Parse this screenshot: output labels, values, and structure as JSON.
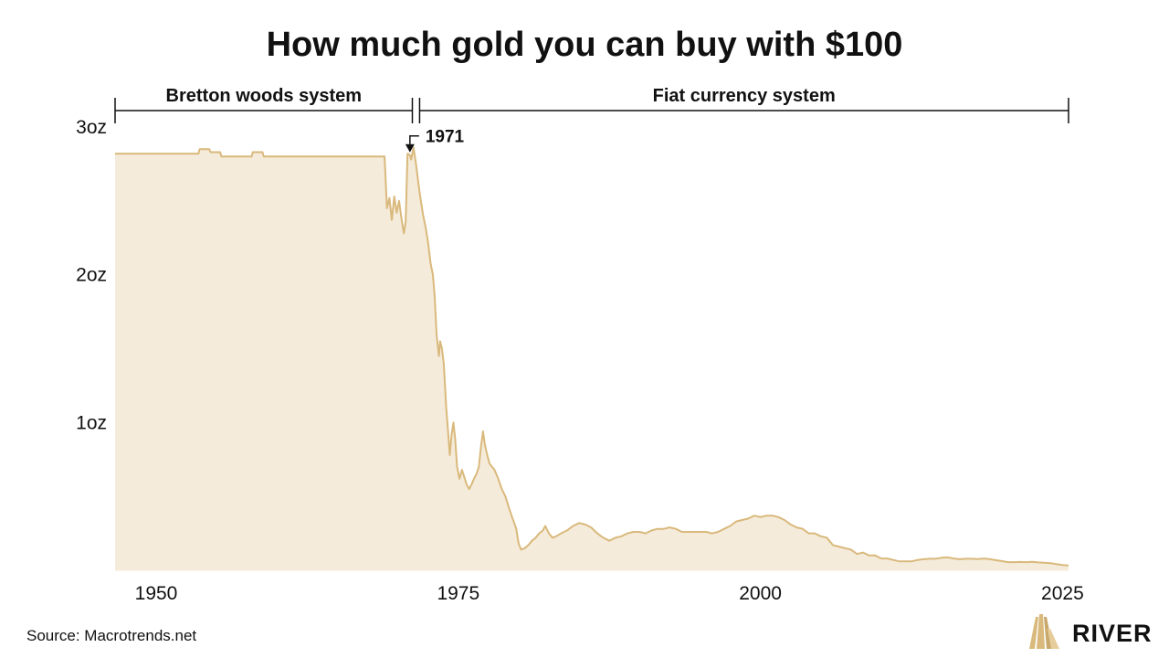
{
  "chart_data": {
    "type": "area",
    "title": "How much gold you can buy with $100",
    "xlabel": "",
    "ylabel": "",
    "x_ticks": [
      1950,
      1975,
      2000,
      2025
    ],
    "y_ticks": [
      {
        "value": 1,
        "label": "1oz"
      },
      {
        "value": 2,
        "label": "2oz"
      },
      {
        "value": 3,
        "label": "3oz"
      }
    ],
    "xlim": [
      1946.6,
      2025.5
    ],
    "ylim": [
      0,
      3
    ],
    "grid": false,
    "colors": {
      "fill": "#f5ebda",
      "line": "#d9b97c"
    },
    "eras": [
      {
        "label": "Bretton woods system",
        "start": 1946.6,
        "end": 1971.2
      },
      {
        "label": "Fiat currency system",
        "start": 1971.8,
        "end": 2025.5
      }
    ],
    "annotation": {
      "label": "1971",
      "x": 1971.0,
      "y": 2.81
    },
    "series": [
      {
        "values": [
          [
            1946.6,
            2.82
          ],
          [
            1953.5,
            2.82
          ],
          [
            1953.6,
            2.85
          ],
          [
            1954.4,
            2.85
          ],
          [
            1954.5,
            2.83
          ],
          [
            1955.3,
            2.83
          ],
          [
            1955.4,
            2.8
          ],
          [
            1957.9,
            2.8
          ],
          [
            1958.0,
            2.83
          ],
          [
            1958.8,
            2.83
          ],
          [
            1958.9,
            2.8
          ],
          [
            1968.9,
            2.8
          ],
          [
            1969.1,
            2.45
          ],
          [
            1969.3,
            2.52
          ],
          [
            1969.5,
            2.37
          ],
          [
            1969.7,
            2.53
          ],
          [
            1969.9,
            2.42
          ],
          [
            1970.1,
            2.5
          ],
          [
            1970.3,
            2.38
          ],
          [
            1970.5,
            2.28
          ],
          [
            1970.65,
            2.36
          ],
          [
            1970.8,
            2.82
          ],
          [
            1971.0,
            2.81
          ],
          [
            1971.1,
            2.78
          ],
          [
            1971.3,
            2.86
          ],
          [
            1971.5,
            2.75
          ],
          [
            1971.7,
            2.62
          ],
          [
            1971.9,
            2.5
          ],
          [
            1972.1,
            2.4
          ],
          [
            1972.3,
            2.32
          ],
          [
            1972.5,
            2.22
          ],
          [
            1972.7,
            2.08
          ],
          [
            1972.9,
            2.0
          ],
          [
            1973.05,
            1.85
          ],
          [
            1973.2,
            1.6
          ],
          [
            1973.4,
            1.45
          ],
          [
            1973.5,
            1.55
          ],
          [
            1973.65,
            1.5
          ],
          [
            1973.8,
            1.4
          ],
          [
            1974.0,
            1.1
          ],
          [
            1974.15,
            0.95
          ],
          [
            1974.3,
            0.78
          ],
          [
            1974.45,
            0.92
          ],
          [
            1974.6,
            1.0
          ],
          [
            1974.75,
            0.88
          ],
          [
            1974.9,
            0.7
          ],
          [
            1975.1,
            0.62
          ],
          [
            1975.3,
            0.68
          ],
          [
            1975.5,
            0.63
          ],
          [
            1975.7,
            0.58
          ],
          [
            1975.9,
            0.55
          ],
          [
            1976.1,
            0.58
          ],
          [
            1976.3,
            0.62
          ],
          [
            1976.5,
            0.65
          ],
          [
            1976.7,
            0.7
          ],
          [
            1976.9,
            0.85
          ],
          [
            1977.05,
            0.94
          ],
          [
            1977.2,
            0.85
          ],
          [
            1977.4,
            0.78
          ],
          [
            1977.6,
            0.72
          ],
          [
            1977.8,
            0.7
          ],
          [
            1978.0,
            0.68
          ],
          [
            1978.3,
            0.62
          ],
          [
            1978.6,
            0.55
          ],
          [
            1978.9,
            0.5
          ],
          [
            1979.2,
            0.42
          ],
          [
            1979.5,
            0.35
          ],
          [
            1979.8,
            0.28
          ],
          [
            1980.0,
            0.18
          ],
          [
            1980.2,
            0.14
          ],
          [
            1980.5,
            0.15
          ],
          [
            1980.8,
            0.17
          ],
          [
            1981.1,
            0.2
          ],
          [
            1981.4,
            0.22
          ],
          [
            1981.7,
            0.25
          ],
          [
            1982.0,
            0.27
          ],
          [
            1982.2,
            0.3
          ],
          [
            1982.5,
            0.25
          ],
          [
            1982.8,
            0.22
          ],
          [
            1983.1,
            0.23
          ],
          [
            1983.5,
            0.25
          ],
          [
            1984.0,
            0.27
          ],
          [
            1984.5,
            0.3
          ],
          [
            1985.0,
            0.32
          ],
          [
            1985.5,
            0.31
          ],
          [
            1986.0,
            0.29
          ],
          [
            1986.5,
            0.25
          ],
          [
            1987.0,
            0.22
          ],
          [
            1987.5,
            0.2
          ],
          [
            1988.0,
            0.22
          ],
          [
            1988.5,
            0.23
          ],
          [
            1989.0,
            0.25
          ],
          [
            1989.5,
            0.26
          ],
          [
            1990.0,
            0.26
          ],
          [
            1990.5,
            0.25
          ],
          [
            1991.0,
            0.27
          ],
          [
            1991.5,
            0.28
          ],
          [
            1992.0,
            0.28
          ],
          [
            1992.5,
            0.29
          ],
          [
            1993.0,
            0.28
          ],
          [
            1993.5,
            0.26
          ],
          [
            1994.0,
            0.26
          ],
          [
            1994.5,
            0.26
          ],
          [
            1995.0,
            0.26
          ],
          [
            1995.5,
            0.26
          ],
          [
            1996.0,
            0.25
          ],
          [
            1996.5,
            0.26
          ],
          [
            1997.0,
            0.28
          ],
          [
            1997.5,
            0.3
          ],
          [
            1998.0,
            0.33
          ],
          [
            1998.5,
            0.34
          ],
          [
            1999.0,
            0.35
          ],
          [
            1999.5,
            0.37
          ],
          [
            2000.0,
            0.36
          ],
          [
            2000.5,
            0.37
          ],
          [
            2001.0,
            0.37
          ],
          [
            2001.5,
            0.36
          ],
          [
            2002.0,
            0.34
          ],
          [
            2002.5,
            0.31
          ],
          [
            2003.0,
            0.29
          ],
          [
            2003.5,
            0.28
          ],
          [
            2004.0,
            0.25
          ],
          [
            2004.5,
            0.25
          ],
          [
            2005.0,
            0.23
          ],
          [
            2005.5,
            0.22
          ],
          [
            2006.0,
            0.17
          ],
          [
            2006.5,
            0.16
          ],
          [
            2007.0,
            0.15
          ],
          [
            2007.5,
            0.14
          ],
          [
            2008.0,
            0.11
          ],
          [
            2008.5,
            0.12
          ],
          [
            2009.0,
            0.1
          ],
          [
            2009.5,
            0.1
          ],
          [
            2010.0,
            0.08
          ],
          [
            2010.5,
            0.08
          ],
          [
            2011.0,
            0.07
          ],
          [
            2011.5,
            0.06
          ],
          [
            2012.0,
            0.06
          ],
          [
            2012.5,
            0.06
          ],
          [
            2013.0,
            0.07
          ],
          [
            2013.5,
            0.075
          ],
          [
            2014.0,
            0.078
          ],
          [
            2014.5,
            0.078
          ],
          [
            2015.0,
            0.085
          ],
          [
            2015.5,
            0.087
          ],
          [
            2016.0,
            0.08
          ],
          [
            2016.5,
            0.075
          ],
          [
            2017.0,
            0.078
          ],
          [
            2017.5,
            0.078
          ],
          [
            2018.0,
            0.076
          ],
          [
            2018.5,
            0.08
          ],
          [
            2019.0,
            0.075
          ],
          [
            2019.5,
            0.068
          ],
          [
            2020.0,
            0.062
          ],
          [
            2020.5,
            0.055
          ],
          [
            2021.0,
            0.055
          ],
          [
            2021.5,
            0.056
          ],
          [
            2022.0,
            0.055
          ],
          [
            2022.5,
            0.057
          ],
          [
            2023.0,
            0.053
          ],
          [
            2023.5,
            0.051
          ],
          [
            2024.0,
            0.048
          ],
          [
            2024.5,
            0.042
          ],
          [
            2025.0,
            0.036
          ],
          [
            2025.5,
            0.032
          ]
        ]
      }
    ]
  },
  "footer": {
    "source": "Source: Macrotrends.net",
    "brand": "RIVER",
    "brand_color": "#d9b97c"
  }
}
